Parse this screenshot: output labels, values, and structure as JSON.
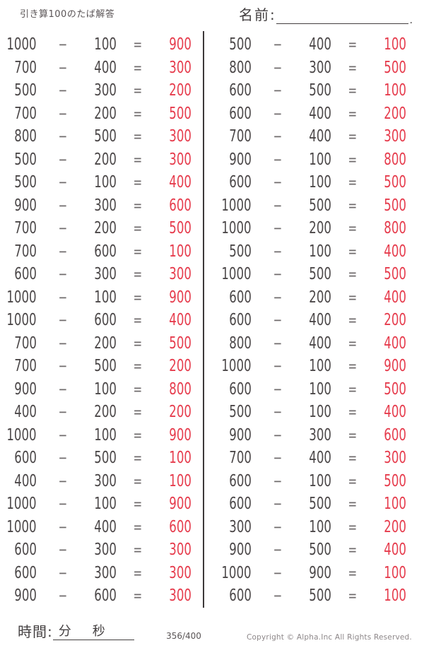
{
  "header": {
    "title": "引き算100のたば解答",
    "name_label": "名前:",
    "name_period": "."
  },
  "problems": {
    "minus_sign": "−",
    "equals_sign": "=",
    "left": [
      {
        "a": "1000",
        "b": "100",
        "c": "900"
      },
      {
        "a": "700",
        "b": "400",
        "c": "300"
      },
      {
        "a": "500",
        "b": "300",
        "c": "200"
      },
      {
        "a": "700",
        "b": "200",
        "c": "500"
      },
      {
        "a": "800",
        "b": "500",
        "c": "300"
      },
      {
        "a": "500",
        "b": "200",
        "c": "300"
      },
      {
        "a": "500",
        "b": "100",
        "c": "400"
      },
      {
        "a": "900",
        "b": "300",
        "c": "600"
      },
      {
        "a": "700",
        "b": "200",
        "c": "500"
      },
      {
        "a": "700",
        "b": "600",
        "c": "100"
      },
      {
        "a": "600",
        "b": "300",
        "c": "300"
      },
      {
        "a": "1000",
        "b": "100",
        "c": "900"
      },
      {
        "a": "1000",
        "b": "600",
        "c": "400"
      },
      {
        "a": "700",
        "b": "200",
        "c": "500"
      },
      {
        "a": "700",
        "b": "500",
        "c": "200"
      },
      {
        "a": "900",
        "b": "100",
        "c": "800"
      },
      {
        "a": "400",
        "b": "200",
        "c": "200"
      },
      {
        "a": "1000",
        "b": "100",
        "c": "900"
      },
      {
        "a": "600",
        "b": "500",
        "c": "100"
      },
      {
        "a": "400",
        "b": "300",
        "c": "100"
      },
      {
        "a": "1000",
        "b": "100",
        "c": "900"
      },
      {
        "a": "1000",
        "b": "400",
        "c": "600"
      },
      {
        "a": "600",
        "b": "300",
        "c": "300"
      },
      {
        "a": "600",
        "b": "300",
        "c": "300"
      },
      {
        "a": "900",
        "b": "600",
        "c": "300"
      }
    ],
    "right": [
      {
        "a": "500",
        "b": "400",
        "c": "100"
      },
      {
        "a": "800",
        "b": "300",
        "c": "500"
      },
      {
        "a": "600",
        "b": "500",
        "c": "100"
      },
      {
        "a": "600",
        "b": "400",
        "c": "200"
      },
      {
        "a": "700",
        "b": "400",
        "c": "300"
      },
      {
        "a": "900",
        "b": "100",
        "c": "800"
      },
      {
        "a": "600",
        "b": "100",
        "c": "500"
      },
      {
        "a": "1000",
        "b": "500",
        "c": "500"
      },
      {
        "a": "1000",
        "b": "200",
        "c": "800"
      },
      {
        "a": "500",
        "b": "100",
        "c": "400"
      },
      {
        "a": "1000",
        "b": "500",
        "c": "500"
      },
      {
        "a": "600",
        "b": "200",
        "c": "400"
      },
      {
        "a": "600",
        "b": "400",
        "c": "200"
      },
      {
        "a": "800",
        "b": "400",
        "c": "400"
      },
      {
        "a": "1000",
        "b": "100",
        "c": "900"
      },
      {
        "a": "600",
        "b": "100",
        "c": "500"
      },
      {
        "a": "500",
        "b": "100",
        "c": "400"
      },
      {
        "a": "900",
        "b": "300",
        "c": "600"
      },
      {
        "a": "700",
        "b": "400",
        "c": "300"
      },
      {
        "a": "600",
        "b": "100",
        "c": "500"
      },
      {
        "a": "600",
        "b": "500",
        "c": "100"
      },
      {
        "a": "300",
        "b": "100",
        "c": "200"
      },
      {
        "a": "900",
        "b": "500",
        "c": "400"
      },
      {
        "a": "1000",
        "b": "900",
        "c": "100"
      },
      {
        "a": "600",
        "b": "500",
        "c": "100"
      }
    ]
  },
  "footer": {
    "time_label": "時間:",
    "minutes_label": "分",
    "seconds_label": "秒",
    "page": "356/400",
    "copyright": "Copyright ©  Alpha.Inc All Rights Reserved."
  },
  "colors": {
    "answer_red": "#e63b4c",
    "problem_text": "#4b4748",
    "operator_gray": "#6f6b6c",
    "divider": "#3c3839"
  }
}
